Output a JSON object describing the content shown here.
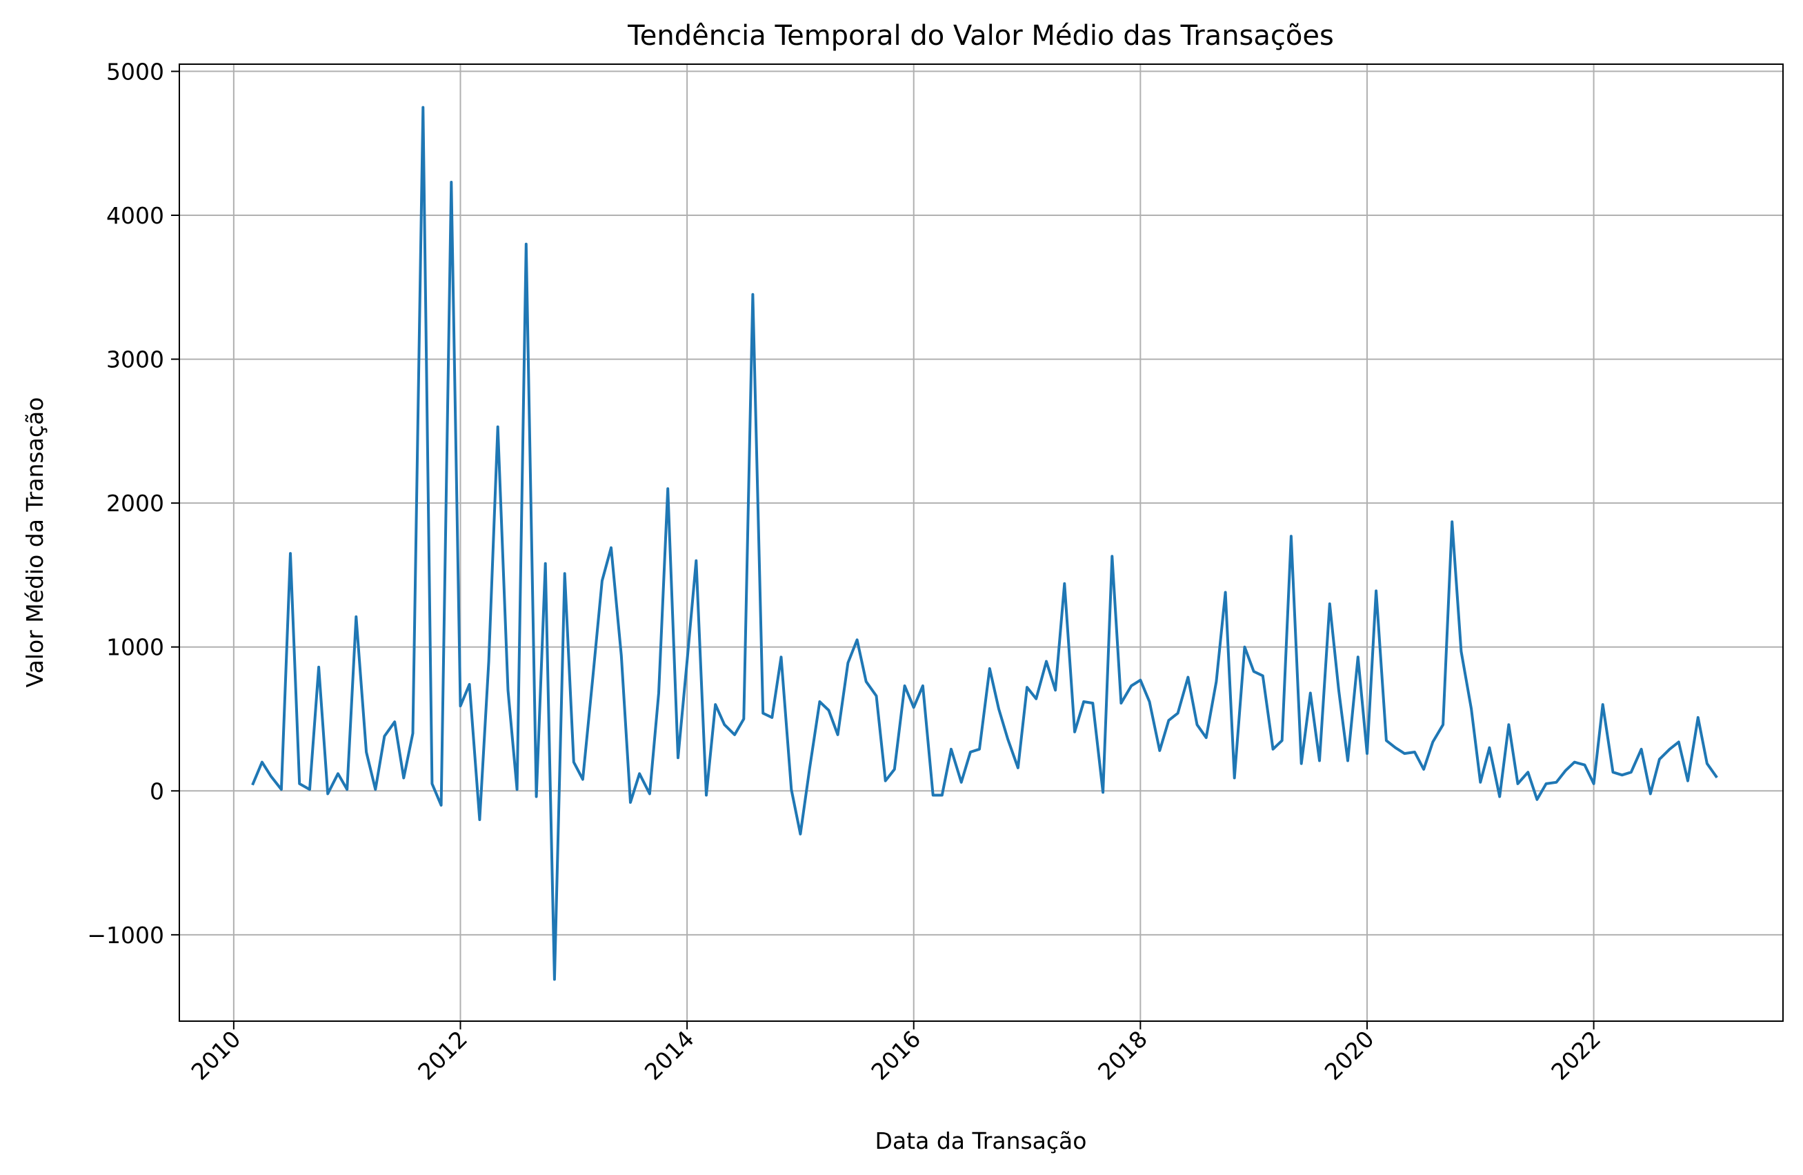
{
  "chart_data": {
    "type": "line",
    "title": "Tendência Temporal do Valor Médio das Transações",
    "xlabel": "Data da Transação",
    "ylabel": "Valor Médio da Transação",
    "x_range": [
      2009.52,
      2023.67
    ],
    "ylim": [
      -1600,
      5050
    ],
    "x_ticks": [
      "2010",
      "2012",
      "2014",
      "2016",
      "2018",
      "2020",
      "2022"
    ],
    "y_ticks": [
      "−1000",
      "0",
      "1000",
      "2000",
      "3000",
      "4000",
      "5000"
    ],
    "grid": true,
    "legend": "none",
    "colors": {
      "line": "#1f77b4",
      "grid": "#b0b0b0"
    },
    "series": [
      {
        "x": [
          2010.17,
          2010.25,
          2010.33,
          2010.42,
          2010.5,
          2010.58,
          2010.67,
          2010.75,
          2010.83,
          2010.92,
          2011.0,
          2011.08,
          2011.17,
          2011.25,
          2011.33,
          2011.42,
          2011.5,
          2011.58,
          2011.67,
          2011.75,
          2011.83,
          2011.92,
          2012.0,
          2012.08,
          2012.17,
          2012.25,
          2012.33,
          2012.42,
          2012.5,
          2012.58,
          2012.67,
          2012.75,
          2012.83,
          2012.92,
          2013.0,
          2013.08,
          2013.17,
          2013.25,
          2013.33,
          2013.42,
          2013.5,
          2013.58,
          2013.67,
          2013.75,
          2013.83,
          2013.92,
          2014.0,
          2014.08,
          2014.17,
          2014.25,
          2014.33,
          2014.42,
          2014.5,
          2014.58,
          2014.67,
          2014.75,
          2014.83,
          2014.92,
          2015.0,
          2015.08,
          2015.17,
          2015.25,
          2015.33,
          2015.42,
          2015.5,
          2015.58,
          2015.67,
          2015.75,
          2015.83,
          2015.92,
          2016.0,
          2016.08,
          2016.17,
          2016.25,
          2016.33,
          2016.42,
          2016.5,
          2016.58,
          2016.67,
          2016.75,
          2016.83,
          2016.92,
          2017.0,
          2017.08,
          2017.17,
          2017.25,
          2017.33,
          2017.42,
          2017.5,
          2017.58,
          2017.67,
          2017.75,
          2017.83,
          2017.92,
          2018.0,
          2018.08,
          2018.17,
          2018.25,
          2018.33,
          2018.42,
          2018.5,
          2018.58,
          2018.67,
          2018.75,
          2018.83,
          2018.92,
          2019.0,
          2019.08,
          2019.17,
          2019.25,
          2019.33,
          2019.42,
          2019.5,
          2019.58,
          2019.67,
          2019.75,
          2019.83,
          2019.92,
          2020.0,
          2020.08,
          2020.17,
          2020.25,
          2020.33,
          2020.42,
          2020.5,
          2020.58,
          2020.67,
          2020.75,
          2020.83,
          2020.92,
          2021.0,
          2021.08,
          2021.17,
          2021.25,
          2021.33,
          2021.42,
          2021.5,
          2021.58,
          2021.67,
          2021.75,
          2021.83,
          2021.92,
          2022.0,
          2022.08,
          2022.17,
          2022.25,
          2022.33,
          2022.42,
          2022.5,
          2022.58,
          2022.67,
          2022.75,
          2022.83,
          2022.92,
          2023.0,
          2023.08
        ],
        "y": [
          50,
          200,
          100,
          10,
          1650,
          50,
          10,
          860,
          -20,
          120,
          10,
          1210,
          270,
          10,
          380,
          480,
          90,
          400,
          4750,
          50,
          -100,
          4230,
          590,
          740,
          -200,
          900,
          2530,
          700,
          10,
          3800,
          -40,
          1580,
          -1310,
          1510,
          200,
          80,
          800,
          1460,
          1690,
          940,
          -80,
          120,
          -20,
          680,
          2100,
          230,
          900,
          1600,
          -30,
          600,
          460,
          390,
          500,
          3450,
          540,
          510,
          930,
          10,
          -300,
          150,
          620,
          560,
          390,
          890,
          1050,
          760,
          660,
          70,
          150,
          730,
          580,
          730,
          -30,
          -30,
          290,
          60,
          270,
          290,
          850,
          570,
          360,
          160,
          720,
          640,
          900,
          700,
          1440,
          410,
          620,
          610,
          -10,
          1630,
          610,
          730,
          770,
          620,
          280,
          490,
          540,
          790,
          460,
          370,
          760,
          1380,
          90,
          1000,
          830,
          800,
          290,
          350,
          1770,
          190,
          680,
          210,
          1300,
          700,
          210,
          930,
          260,
          1390,
          350,
          300,
          260,
          270,
          150,
          340,
          460,
          1870,
          970,
          570,
          60,
          300,
          -40,
          460,
          50,
          130,
          -60,
          50,
          60,
          140,
          200,
          180,
          50,
          600,
          130,
          110,
          130,
          290,
          -20,
          220,
          290,
          340,
          70,
          510,
          190,
          100
        ]
      }
    ]
  }
}
